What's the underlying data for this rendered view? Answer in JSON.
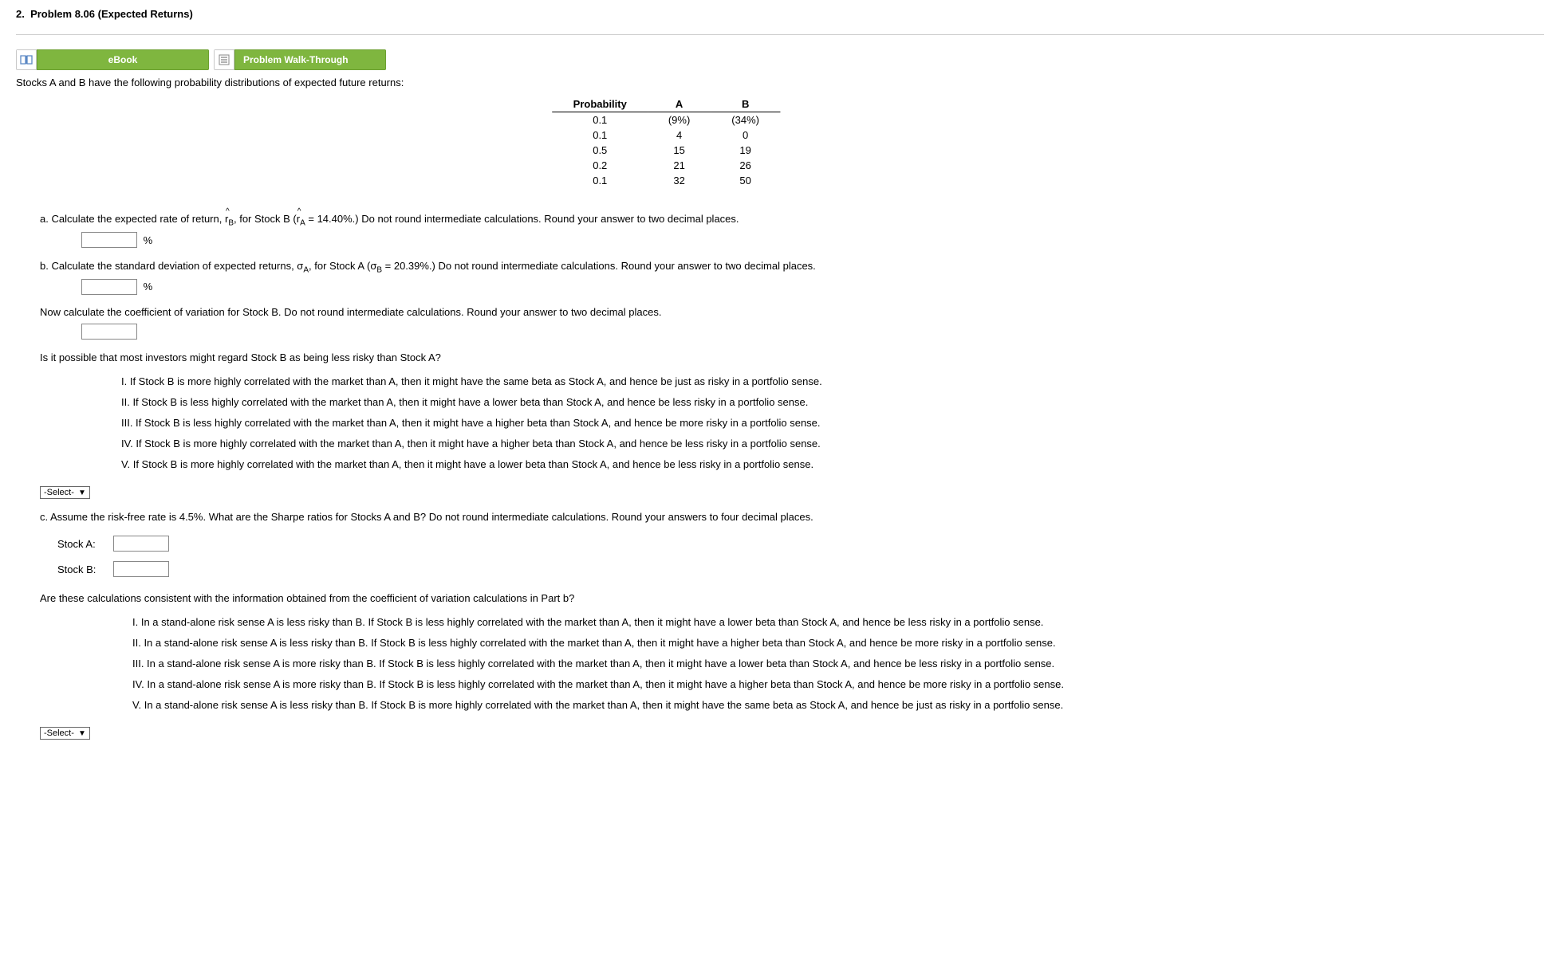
{
  "header": {
    "number": "2.",
    "title": "Problem 8.06 (Expected Returns)"
  },
  "buttons": {
    "ebook": "eBook",
    "walkthrough": "Problem Walk-Through"
  },
  "intro": "Stocks A and B have the following probability distributions of expected future returns:",
  "table": {
    "headers": [
      "Probability",
      "A",
      "B"
    ],
    "rows": [
      [
        "0.1",
        "(9%)",
        "(34%)"
      ],
      [
        "0.1",
        "4",
        "0"
      ],
      [
        "0.5",
        "15",
        "19"
      ],
      [
        "0.2",
        "21",
        "26"
      ],
      [
        "0.1",
        "32",
        "50"
      ]
    ]
  },
  "qa": {
    "prefix": "a. Calculate the expected rate of return, ",
    "rb": "r",
    "rb_sub": "B",
    "mid": ", for Stock B (",
    "ra": "r",
    "ra_sub": "A",
    "rest": " = 14.40%.) Do not round intermediate calculations. Round your answer to two decimal places.",
    "unit": "%"
  },
  "qb": {
    "prefix": "b. Calculate the standard deviation of expected returns, σ",
    "sa_sub": "A",
    "mid": ", for Stock A (σ",
    "sb_sub": "B",
    "rest": " = 20.39%.) Do not round intermediate calculations. Round your answer to two decimal places.",
    "unit": "%",
    "cv_text": "Now calculate the coefficient of variation for Stock B. Do not round intermediate calculations. Round your answer to two decimal places."
  },
  "risky_q": "Is it possible that most investors might regard Stock B as being less risky than Stock A?",
  "options1": [
    "I. If Stock B is more highly correlated with the market than A, then it might have the same beta as Stock A, and hence be just as risky in a portfolio sense.",
    "II. If Stock B is less highly correlated with the market than A, then it might have a lower beta than Stock A, and hence be less risky in a portfolio sense.",
    "III. If Stock B is less highly correlated with the market than A, then it might have a higher beta than Stock A, and hence be more risky in a portfolio sense.",
    "IV. If Stock B is more highly correlated with the market than A, then it might have a higher beta than Stock A, and hence be less risky in a portfolio sense.",
    "V. If Stock B is more highly correlated with the market than A, then it might have a lower beta than Stock A, and hence be less risky in a portfolio sense."
  ],
  "select_label": "-Select-",
  "qc": {
    "text": "c. Assume the risk-free rate is 4.5%. What are the Sharpe ratios for Stocks A and B? Do not round intermediate calculations. Round your answers to four decimal places.",
    "stockA": "Stock A:",
    "stockB": "Stock B:",
    "consist": "Are these calculations consistent with the information obtained from the coefficient of variation calculations in Part b?"
  },
  "options2": [
    "I. In a stand-alone risk sense A is less risky than B. If Stock B is less highly correlated with the market than A, then it might have a lower beta than Stock A, and hence be less risky in a portfolio sense.",
    "II. In a stand-alone risk sense A is less risky than B. If Stock B is less highly correlated with the market than A, then it might have a higher beta than Stock A, and hence be more risky in a portfolio sense.",
    "III. In a stand-alone risk sense A is more risky than B. If Stock B is less highly correlated with the market than A, then it might have a lower beta than Stock A, and hence be less risky in a portfolio sense.",
    "IV. In a stand-alone risk sense A is more risky than B. If Stock B is less highly correlated with the market than A, then it might have a higher beta than Stock A, and hence be more risky in a portfolio sense.",
    "V. In a stand-alone risk sense A is less risky than B. If Stock B is more highly correlated with the market than A, then it might have the same beta as Stock A, and hence be just as risky in a portfolio sense."
  ]
}
